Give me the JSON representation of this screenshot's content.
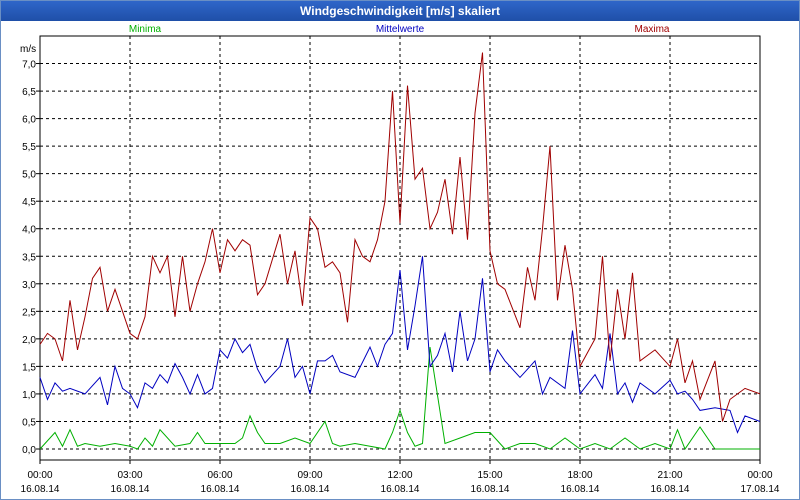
{
  "window": {
    "title": "Windgeschwindigkeit [m/s] skaliert"
  },
  "chart_data": {
    "type": "line",
    "title": "Windgeschwindigkeit [m/s] skaliert",
    "ylabel": "m/s",
    "xlabel": "",
    "ylim": [
      -0.2,
      7.5
    ],
    "xlim": [
      0,
      24
    ],
    "grid": true,
    "y_ticks": [
      "0,0",
      "0,5",
      "1,0",
      "1,5",
      "2,0",
      "2,5",
      "3,0",
      "3,5",
      "4,0",
      "4,5",
      "5,0",
      "5,5",
      "6,0",
      "6,5",
      "7,0"
    ],
    "y_tick_values": [
      0,
      0.5,
      1,
      1.5,
      2,
      2.5,
      3,
      3.5,
      4,
      4.5,
      5,
      5.5,
      6,
      6.5,
      7
    ],
    "x_ticks": [
      {
        "time": "00:00",
        "date": "16.08.14"
      },
      {
        "time": "03:00",
        "date": "16.08.14"
      },
      {
        "time": "06:00",
        "date": "16.08.14"
      },
      {
        "time": "09:00",
        "date": "16.08.14"
      },
      {
        "time": "12:00",
        "date": "16.08.14"
      },
      {
        "time": "15:00",
        "date": "16.08.14"
      },
      {
        "time": "18:00",
        "date": "16.08.14"
      },
      {
        "time": "21:00",
        "date": "16.08.14"
      },
      {
        "time": "00:00",
        "date": "17.08.14"
      }
    ],
    "x_tick_hours": [
      0,
      3,
      6,
      9,
      12,
      15,
      18,
      21,
      24
    ],
    "series": [
      {
        "name": "Minima",
        "color": "#00b000",
        "x": [
          0,
          0.5,
          0.75,
          1,
          1.25,
          1.5,
          2,
          2.5,
          3,
          3.25,
          3.5,
          3.75,
          4,
          4.5,
          5,
          5.25,
          5.5,
          6,
          6.5,
          6.75,
          7,
          7.25,
          7.5,
          8,
          8.5,
          9,
          9.5,
          9.75,
          10,
          10.5,
          11,
          11.5,
          11.75,
          12,
          12.25,
          12.5,
          12.75,
          13,
          13.5,
          14,
          14.5,
          15,
          15.5,
          16,
          16.5,
          17,
          17.5,
          18,
          18.5,
          19,
          19.5,
          20,
          20.5,
          21,
          21.25,
          21.5,
          22,
          22.5,
          23,
          23.5,
          24
        ],
        "values": [
          0.0,
          0.3,
          0.05,
          0.35,
          0.05,
          0.1,
          0.05,
          0.1,
          0.05,
          0.0,
          0.2,
          0.05,
          0.35,
          0.05,
          0.1,
          0.3,
          0.1,
          0.1,
          0.1,
          0.2,
          0.6,
          0.3,
          0.1,
          0.1,
          0.2,
          0.1,
          0.5,
          0.1,
          0.05,
          0.1,
          0.05,
          0.0,
          0.3,
          0.7,
          0.3,
          0.05,
          0.1,
          1.85,
          0.1,
          0.2,
          0.3,
          0.3,
          0.0,
          0.1,
          0.1,
          0.0,
          0.2,
          0.0,
          0.1,
          0.0,
          0.2,
          0.0,
          0.1,
          0.0,
          0.35,
          0.0,
          0.4,
          0.0,
          0.0,
          0.0,
          0.0
        ]
      },
      {
        "name": "Mittelwerte",
        "color": "#0000c0",
        "x": [
          0,
          0.25,
          0.5,
          0.75,
          1,
          1.5,
          2,
          2.25,
          2.5,
          2.75,
          3,
          3.25,
          3.5,
          3.75,
          4,
          4.25,
          4.5,
          4.75,
          5,
          5.25,
          5.5,
          5.75,
          6,
          6.25,
          6.5,
          6.75,
          7,
          7.25,
          7.5,
          8,
          8.25,
          8.5,
          8.75,
          9,
          9.25,
          9.5,
          9.75,
          10,
          10.5,
          11,
          11.25,
          11.5,
          11.75,
          12,
          12.25,
          12.5,
          12.75,
          13,
          13.25,
          13.5,
          13.75,
          14,
          14.25,
          14.5,
          14.75,
          15,
          15.25,
          15.5,
          16,
          16.5,
          16.75,
          17,
          17.5,
          17.75,
          18,
          18.5,
          18.75,
          19,
          19.25,
          19.5,
          19.75,
          20,
          20.5,
          21,
          21.25,
          21.5,
          21.75,
          22,
          22.5,
          23,
          23.25,
          23.5,
          24
        ],
        "values": [
          1.3,
          0.9,
          1.2,
          1.05,
          1.1,
          1.0,
          1.3,
          0.8,
          1.5,
          1.1,
          1.0,
          0.75,
          1.2,
          1.1,
          1.35,
          1.2,
          1.55,
          1.3,
          1.0,
          1.35,
          1.0,
          1.1,
          1.8,
          1.65,
          2.0,
          1.75,
          1.9,
          1.45,
          1.2,
          1.5,
          2.0,
          1.3,
          1.5,
          1.0,
          1.6,
          1.6,
          1.7,
          1.4,
          1.3,
          1.85,
          1.5,
          1.9,
          2.1,
          3.25,
          1.8,
          2.6,
          3.5,
          1.5,
          1.7,
          2.1,
          1.4,
          2.5,
          1.6,
          2.0,
          3.1,
          1.4,
          1.8,
          1.6,
          1.3,
          1.6,
          1.0,
          1.3,
          1.1,
          2.15,
          1.0,
          1.35,
          1.1,
          2.1,
          1.0,
          1.2,
          0.85,
          1.2,
          1.0,
          1.25,
          1.0,
          1.05,
          0.9,
          0.7,
          0.75,
          0.7,
          0.3,
          0.6,
          0.5
        ]
      },
      {
        "name": "Maxima",
        "color": "#a00000",
        "x": [
          0,
          0.25,
          0.5,
          0.75,
          1,
          1.25,
          1.5,
          1.75,
          2,
          2.25,
          2.5,
          2.75,
          3,
          3.25,
          3.5,
          3.75,
          4,
          4.25,
          4.5,
          4.75,
          5,
          5.25,
          5.5,
          5.75,
          6,
          6.25,
          6.5,
          6.75,
          7,
          7.25,
          7.5,
          8,
          8.25,
          8.5,
          8.75,
          9,
          9.25,
          9.5,
          9.75,
          10,
          10.25,
          10.5,
          10.75,
          11,
          11.25,
          11.5,
          11.75,
          12,
          12.25,
          12.5,
          12.75,
          13,
          13.25,
          13.5,
          13.75,
          14,
          14.25,
          14.5,
          14.75,
          15,
          15.25,
          15.5,
          16,
          16.25,
          16.5,
          16.75,
          17,
          17.25,
          17.5,
          17.75,
          18,
          18.5,
          18.75,
          19,
          19.25,
          19.5,
          19.75,
          20,
          20.5,
          21,
          21.25,
          21.5,
          21.75,
          22,
          22.5,
          22.75,
          23,
          23.5,
          24
        ],
        "values": [
          1.9,
          2.1,
          2.0,
          1.6,
          2.7,
          1.8,
          2.4,
          3.1,
          3.3,
          2.5,
          2.9,
          2.5,
          2.1,
          2.0,
          2.4,
          3.5,
          3.2,
          3.5,
          2.4,
          3.5,
          2.5,
          3.0,
          3.4,
          4.0,
          3.2,
          3.8,
          3.6,
          3.8,
          3.7,
          2.8,
          3.0,
          3.9,
          3.0,
          3.6,
          2.6,
          4.2,
          4.0,
          3.3,
          3.4,
          3.2,
          2.3,
          3.8,
          3.5,
          3.4,
          3.8,
          4.5,
          6.5,
          4.1,
          6.6,
          4.9,
          5.1,
          4.0,
          4.3,
          4.9,
          3.9,
          5.3,
          3.8,
          6.1,
          7.2,
          3.6,
          3.0,
          2.9,
          2.2,
          3.3,
          2.7,
          4.0,
          5.5,
          2.7,
          3.7,
          2.9,
          1.5,
          2.0,
          3.5,
          1.6,
          2.9,
          2.0,
          3.2,
          1.6,
          1.8,
          1.5,
          2.0,
          1.2,
          1.6,
          0.9,
          1.6,
          0.5,
          0.9,
          1.1,
          1.0
        ]
      }
    ]
  }
}
